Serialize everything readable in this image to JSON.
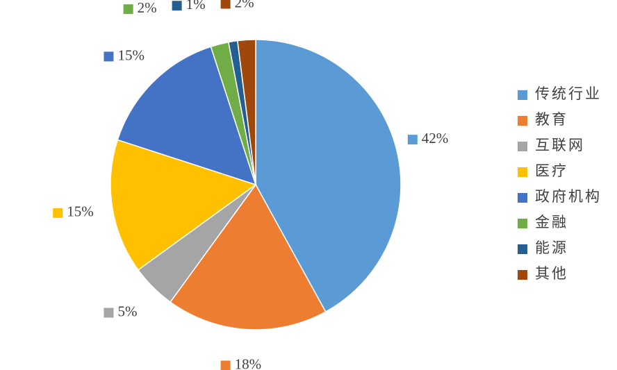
{
  "chart_data": {
    "type": "pie",
    "categories": [
      "传统行业",
      "教育",
      "互联网",
      "医疗",
      "政府机构",
      "金融",
      "能源",
      "其他"
    ],
    "values": [
      42,
      18,
      5,
      15,
      15,
      2,
      1,
      2
    ],
    "value_labels": [
      "42%",
      "18%",
      "5%",
      "15%",
      "15%",
      "2%",
      "1%",
      "2%"
    ],
    "colors": [
      "#5b9bd5",
      "#ed7d31",
      "#a5a5a5",
      "#ffc000",
      "#4472c4",
      "#70ad47",
      "#255e91",
      "#9e480e"
    ],
    "legend": "right"
  }
}
